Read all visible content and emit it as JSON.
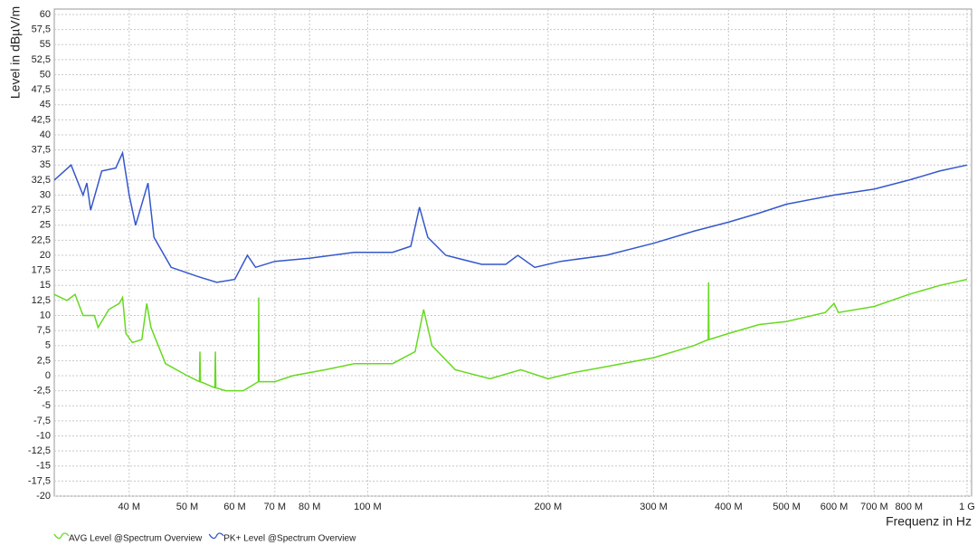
{
  "chart_data": {
    "type": "line",
    "xlabel": "Frequenz in Hz",
    "ylabel": "Level in dBµV/m",
    "xscale": "log",
    "grid": true,
    "legend": "bottom-left",
    "xlim": [
      30000000,
      1000000000
    ],
    "ylim": [
      -20,
      60
    ],
    "xticks": [
      {
        "value": 40000000,
        "label": "40 M"
      },
      {
        "value": 50000000,
        "label": "50 M"
      },
      {
        "value": 60000000,
        "label": "60 M"
      },
      {
        "value": 70000000,
        "label": "70 M"
      },
      {
        "value": 80000000,
        "label": "80 M"
      },
      {
        "value": 100000000,
        "label": "100 M"
      },
      {
        "value": 200000000,
        "label": "200 M"
      },
      {
        "value": 300000000,
        "label": "300 M"
      },
      {
        "value": 400000000,
        "label": "400 M"
      },
      {
        "value": 500000000,
        "label": "500 M"
      },
      {
        "value": 600000000,
        "label": "600 M"
      },
      {
        "value": 700000000,
        "label": "700 M"
      },
      {
        "value": 800000000,
        "label": "800 M"
      },
      {
        "value": 1000000000,
        "label": "1 G"
      }
    ],
    "yticks": [
      -20,
      {
        "value": -17.5,
        "label": "-17,5"
      },
      -15,
      {
        "value": -12.5,
        "label": "-12,5"
      },
      -10,
      {
        "value": -7.5,
        "label": "-7,5"
      },
      -5,
      {
        "value": -2.5,
        "label": "-2,5"
      },
      0,
      {
        "value": 2.5,
        "label": "2,5"
      },
      5,
      {
        "value": 7.5,
        "label": "7,5"
      },
      10,
      {
        "value": 12.5,
        "label": "12,5"
      },
      15,
      {
        "value": 17.5,
        "label": "17,5"
      },
      20,
      {
        "value": 22.5,
        "label": "22,5"
      },
      25,
      {
        "value": 27.5,
        "label": "27,5"
      },
      30,
      {
        "value": 32.5,
        "label": "32,5"
      },
      35,
      {
        "value": 37.5,
        "label": "37,5"
      },
      40,
      {
        "value": 42.5,
        "label": "42,5"
      },
      45,
      {
        "value": 47.5,
        "label": "47,5"
      },
      50,
      {
        "value": 52.5,
        "label": "52,5"
      },
      55,
      {
        "value": 57.5,
        "label": "57,5"
      },
      60
    ],
    "series": [
      {
        "name": "AVG Level @Spectrum Overview",
        "color": "#66d91f",
        "x": [
          30000000,
          31500000,
          32500000,
          33500000,
          35000000,
          35500000,
          37000000,
          38500000,
          39000000,
          39500000,
          40500000,
          42000000,
          42800000,
          43500000,
          46000000,
          50000000,
          52400000,
          52500000,
          52600000,
          55600000,
          55700000,
          55800000,
          58000000,
          62000000,
          65700000,
          65800000,
          65900000,
          70000000,
          75000000,
          85000000,
          95000000,
          110000000,
          120000000,
          124000000,
          128000000,
          140000000,
          160000000,
          180000000,
          200000000,
          220000000,
          250000000,
          300000000,
          350000000,
          370000000,
          370500000,
          371000000,
          400000000,
          450000000,
          500000000,
          580000000,
          600000000,
          610000000,
          700000000,
          800000000,
          900000000,
          1000000000
        ],
        "values": [
          13.5,
          12.5,
          13.5,
          10,
          10,
          8,
          11,
          12,
          13,
          7,
          5.5,
          6,
          12,
          8,
          2,
          0,
          -1,
          4,
          -1,
          -2,
          4,
          -2,
          -2.5,
          -2.5,
          -1,
          13,
          -1,
          -1,
          0,
          1,
          2,
          2,
          4,
          11,
          5,
          1,
          -0.5,
          1,
          -0.5,
          0.5,
          1.5,
          3,
          5,
          6,
          15.5,
          6,
          7,
          8.5,
          9,
          10.5,
          12,
          10.5,
          11.5,
          13.5,
          15,
          16
        ]
      },
      {
        "name": "PK+ Level @Spectrum Overview",
        "color": "#3557cc",
        "x": [
          30000000,
          32000000,
          33500000,
          34000000,
          34500000,
          36000000,
          38000000,
          39000000,
          40000000,
          41000000,
          43000000,
          44000000,
          47000000,
          52000000,
          56000000,
          60000000,
          63000000,
          65000000,
          70000000,
          80000000,
          95000000,
          110000000,
          118000000,
          122000000,
          126000000,
          135000000,
          155000000,
          170000000,
          178000000,
          190000000,
          210000000,
          250000000,
          300000000,
          350000000,
          400000000,
          450000000,
          500000000,
          600000000,
          700000000,
          800000000,
          900000000,
          1000000000
        ],
        "values": [
          32.5,
          35,
          30,
          32,
          27.5,
          34,
          34.5,
          37,
          30,
          25,
          32,
          23,
          18,
          16.5,
          15.5,
          16,
          20,
          18,
          19,
          19.5,
          20.5,
          20.5,
          21.5,
          28,
          23,
          20,
          18.5,
          18.5,
          20,
          18,
          19,
          20,
          22,
          24,
          25.5,
          27,
          28.5,
          30,
          31,
          32.5,
          34,
          35
        ]
      }
    ]
  }
}
